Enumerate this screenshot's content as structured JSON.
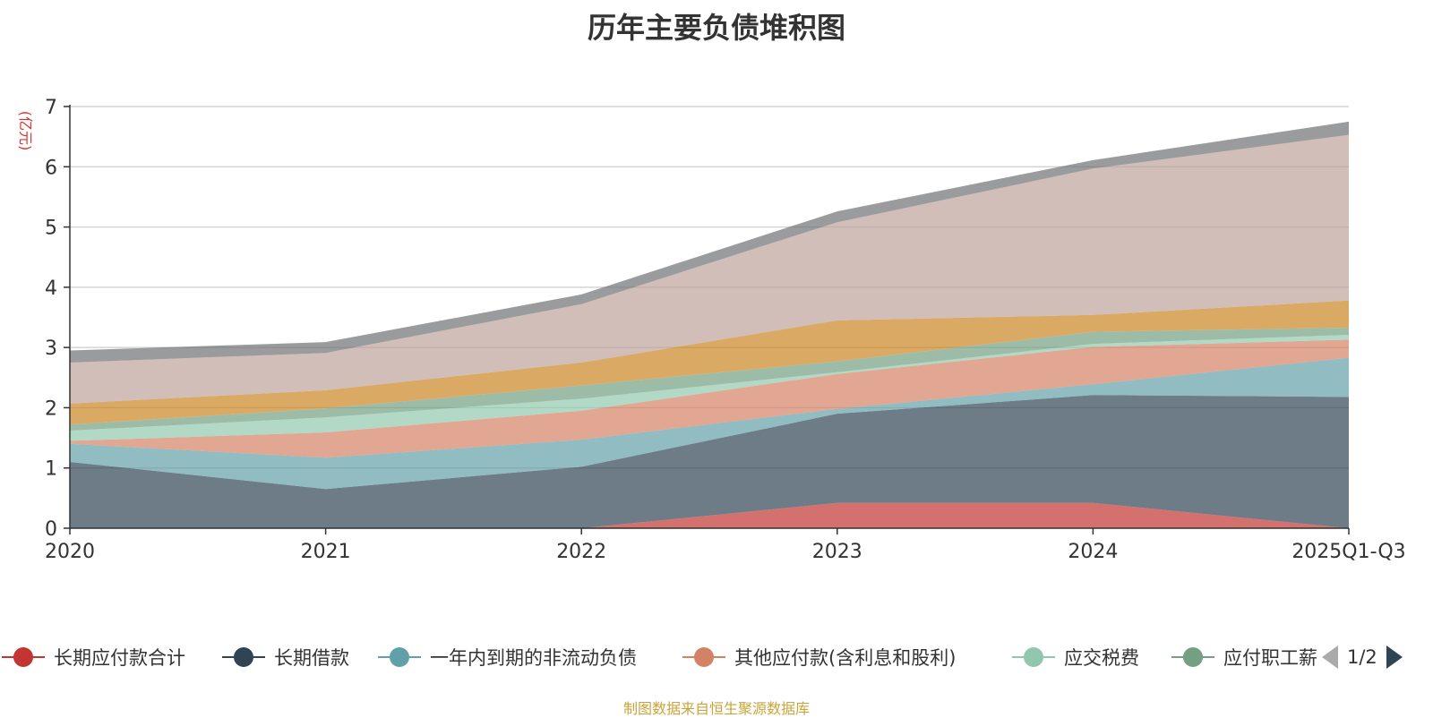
{
  "title": "历年主要负债堆积图",
  "source": "制图数据来自恒生聚源数据库",
  "pager": {
    "text": "1/2"
  },
  "chart_data": {
    "type": "area",
    "stacked": true,
    "title": "历年主要负债堆积图",
    "ylabel": "(亿元)",
    "ylim": [
      0,
      7
    ],
    "yticks": [
      0,
      1,
      2,
      3,
      4,
      5,
      6,
      7
    ],
    "categories": [
      "2020",
      "2021",
      "2022",
      "2023",
      "2024",
      "2025Q1-Q3"
    ],
    "legend_position": "bottom",
    "grid": true,
    "series": [
      {
        "name": "长期应付款合计",
        "color": "#c23531",
        "legend_visible": true,
        "values": [
          0,
          0,
          0,
          0.42,
          0.42,
          0
        ]
      },
      {
        "name": "长期借款",
        "color": "#2f4554",
        "legend_visible": true,
        "values": [
          1.1,
          0.65,
          1.02,
          1.48,
          1.79,
          2.18
        ]
      },
      {
        "name": "一年内到期的非流动负债",
        "color": "#61a0a8",
        "legend_visible": true,
        "values": [
          0.3,
          0.52,
          0.45,
          0.08,
          0.18,
          0.65
        ]
      },
      {
        "name": "其他应付款(含利息和股利)",
        "color": "#d48265",
        "legend_visible": true,
        "values": [
          0.05,
          0.42,
          0.48,
          0.58,
          0.62,
          0.3
        ]
      },
      {
        "name": "应交税费",
        "color": "#91c7ae",
        "legend_visible": true,
        "values": [
          0.17,
          0.25,
          0.2,
          0.03,
          0.05,
          0.08
        ]
      },
      {
        "name": "应付职工薪酬",
        "color": "#749f83",
        "legend_visible": true,
        "legend_label": "应付职工薪",
        "values": [
          0.1,
          0.15,
          0.22,
          0.18,
          0.2,
          0.12
        ]
      },
      {
        "name": "",
        "color": "#ca8622",
        "legend_visible": false,
        "values": [
          0.35,
          0.3,
          0.38,
          0.68,
          0.28,
          0.45
        ]
      },
      {
        "name": "",
        "color": "#bda29a",
        "legend_visible": false,
        "values": [
          0.68,
          0.62,
          0.97,
          1.63,
          2.43,
          2.75
        ]
      },
      {
        "name": "",
        "color": "#6e7074",
        "legend_visible": false,
        "values": [
          0.2,
          0.18,
          0.16,
          0.18,
          0.14,
          0.22
        ]
      }
    ]
  }
}
